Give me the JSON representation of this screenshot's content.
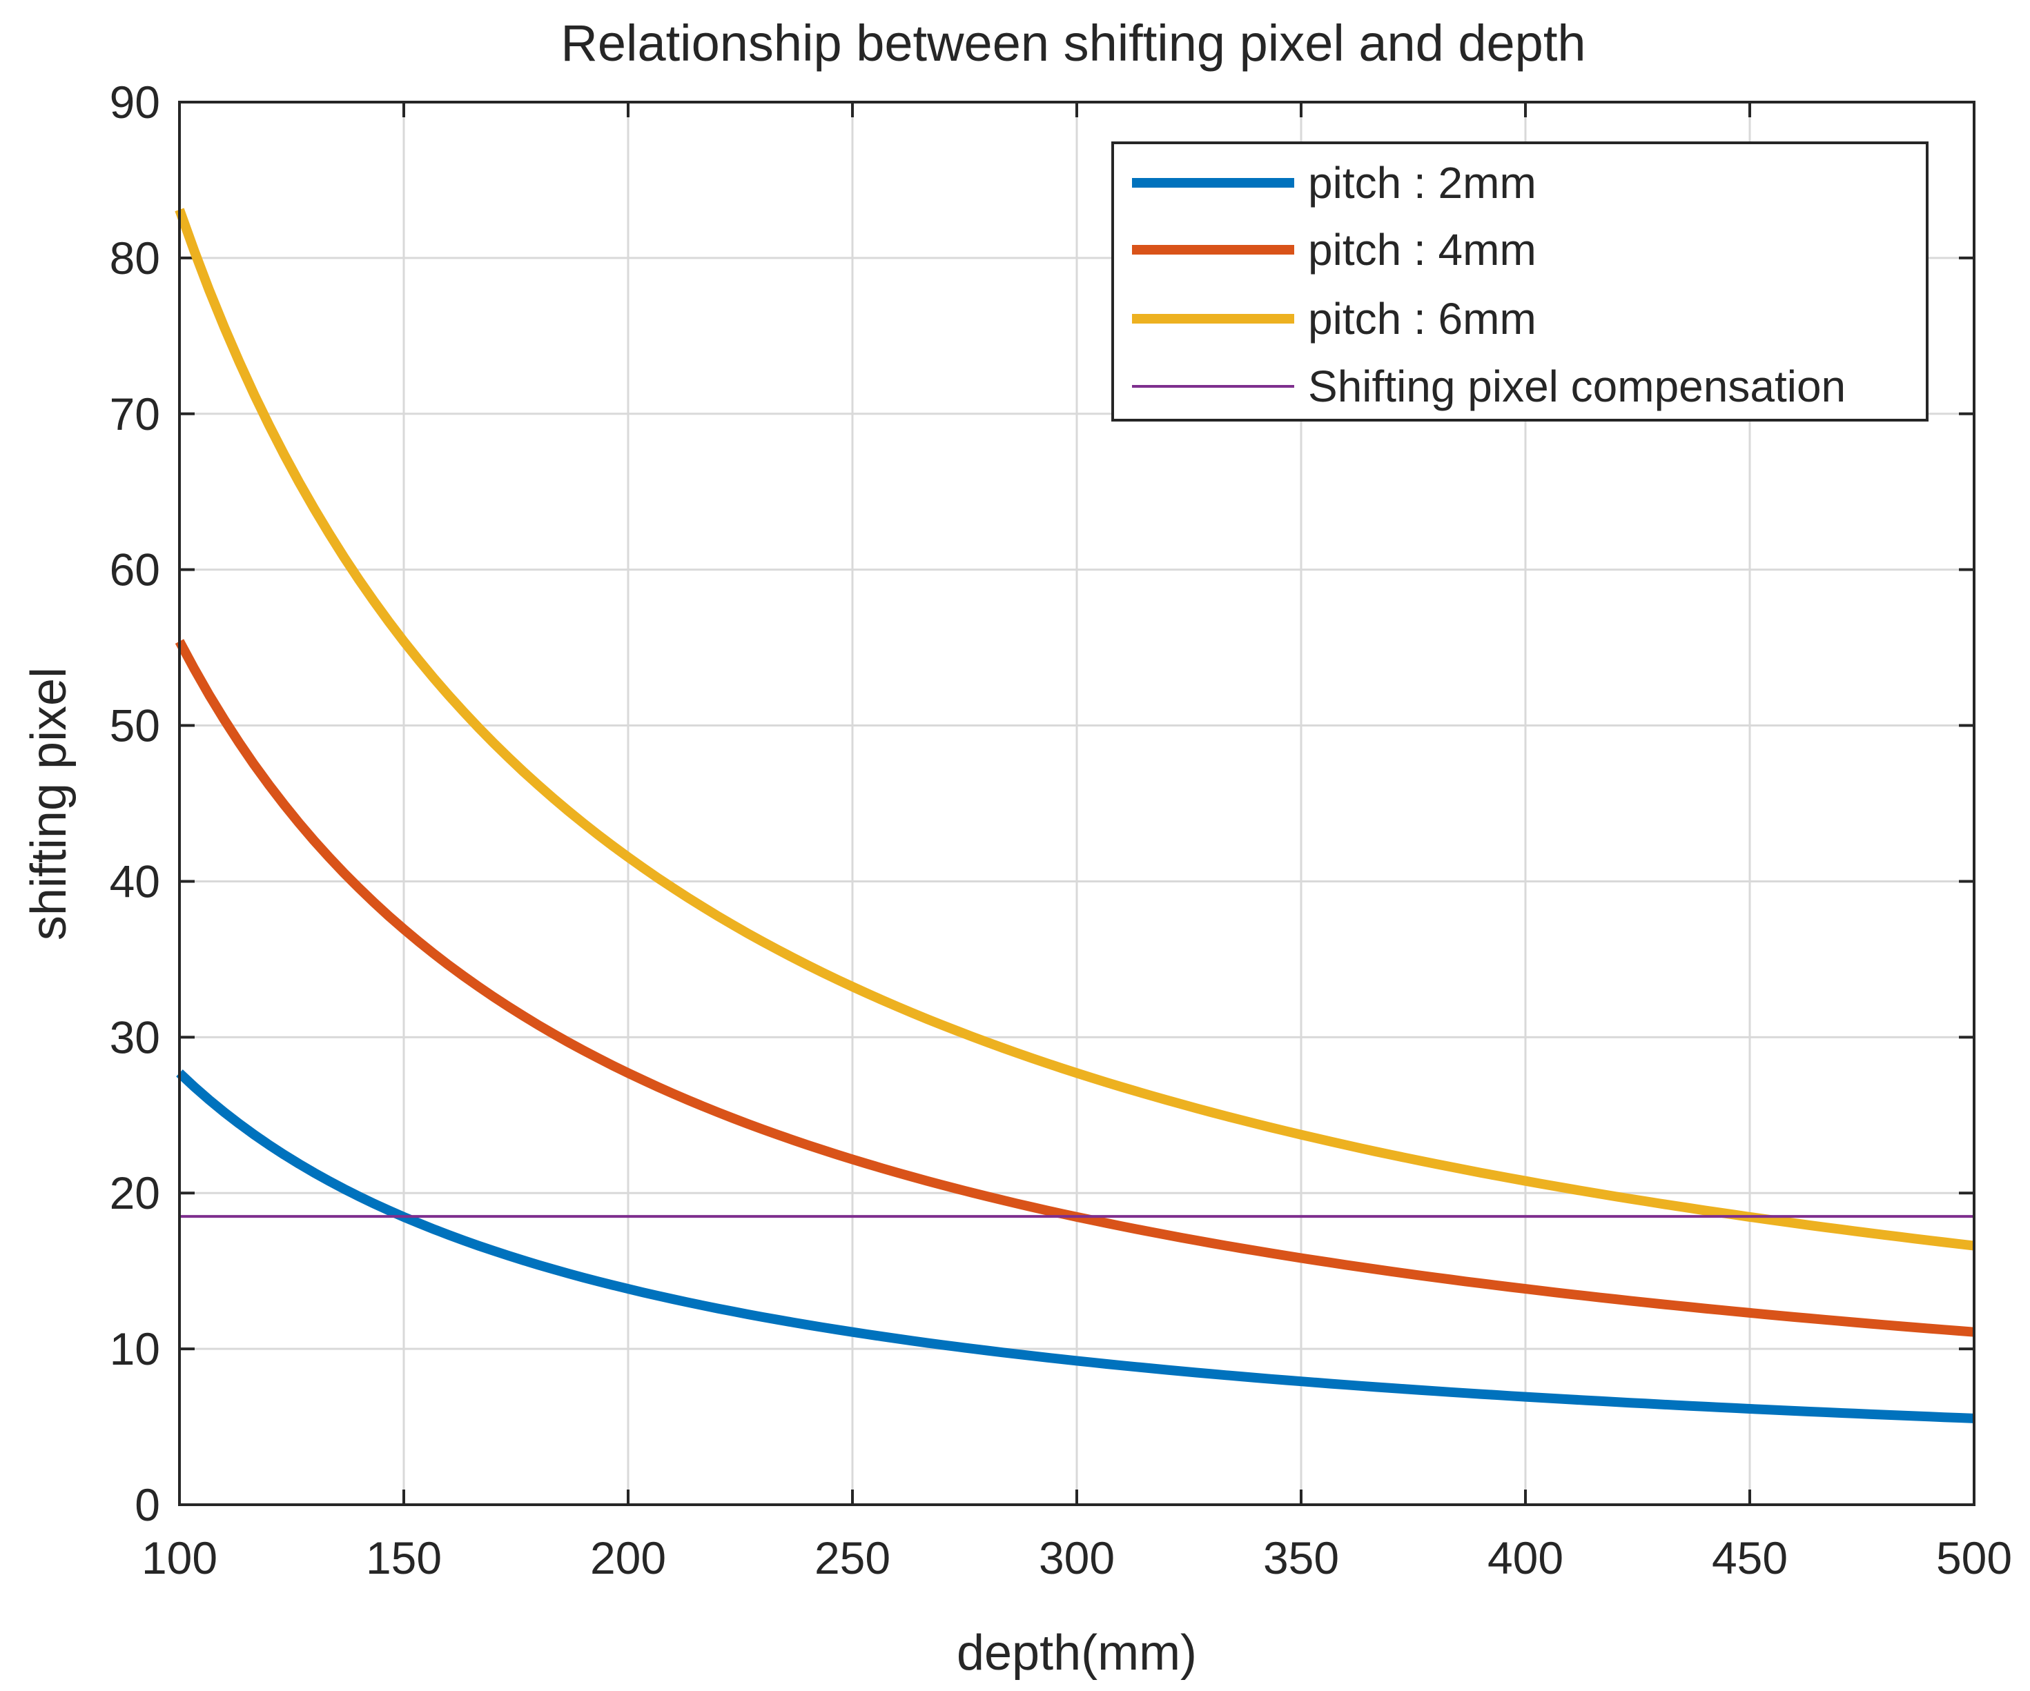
{
  "chart_data": {
    "type": "line",
    "title": "Relationship between shifting pixel and depth",
    "xlabel": "depth(mm)",
    "ylabel": "shifting pixel",
    "xlim": [
      100,
      500
    ],
    "ylim": [
      0,
      90
    ],
    "xticks": [
      "100",
      "150",
      "200",
      "250",
      "300",
      "350",
      "400",
      "450",
      "500"
    ],
    "yticks": [
      "0",
      "10",
      "20",
      "30",
      "40",
      "50",
      "60",
      "70",
      "80",
      "90"
    ],
    "grid": true,
    "legend_position": "top-right",
    "x": [
      100,
      125,
      150,
      175,
      200,
      225,
      250,
      275,
      300,
      325,
      350,
      375,
      400,
      425,
      450,
      475,
      500
    ],
    "series": [
      {
        "name": "pitch : 2mm",
        "color": "#0072BD",
        "width": "thick",
        "values": [
          27.7,
          22.2,
          18.5,
          15.8,
          13.9,
          12.3,
          11.1,
          10.1,
          9.2,
          8.5,
          7.9,
          7.4,
          6.9,
          6.5,
          6.2,
          5.8,
          5.5
        ]
      },
      {
        "name": "pitch : 4mm",
        "color": "#D95319",
        "width": "thick",
        "values": [
          55.4,
          44.3,
          36.9,
          31.7,
          27.7,
          24.6,
          22.2,
          20.1,
          18.5,
          17.0,
          15.8,
          14.8,
          13.9,
          13.0,
          12.3,
          11.7,
          11.1
        ]
      },
      {
        "name": "pitch : 6mm",
        "color": "#EDB120",
        "width": "thick",
        "values": [
          83.1,
          66.5,
          55.4,
          47.5,
          41.6,
          36.9,
          33.2,
          30.2,
          27.7,
          25.6,
          23.7,
          22.2,
          20.8,
          19.6,
          18.5,
          17.5,
          16.6
        ]
      },
      {
        "name": "Shifting pixel compensation",
        "color": "#7E2F8E",
        "width": "thin",
        "values": [
          18.5,
          18.5,
          18.5,
          18.5,
          18.5,
          18.5,
          18.5,
          18.5,
          18.5,
          18.5,
          18.5,
          18.5,
          18.5,
          18.5,
          18.5,
          18.5,
          18.5
        ]
      }
    ]
  }
}
